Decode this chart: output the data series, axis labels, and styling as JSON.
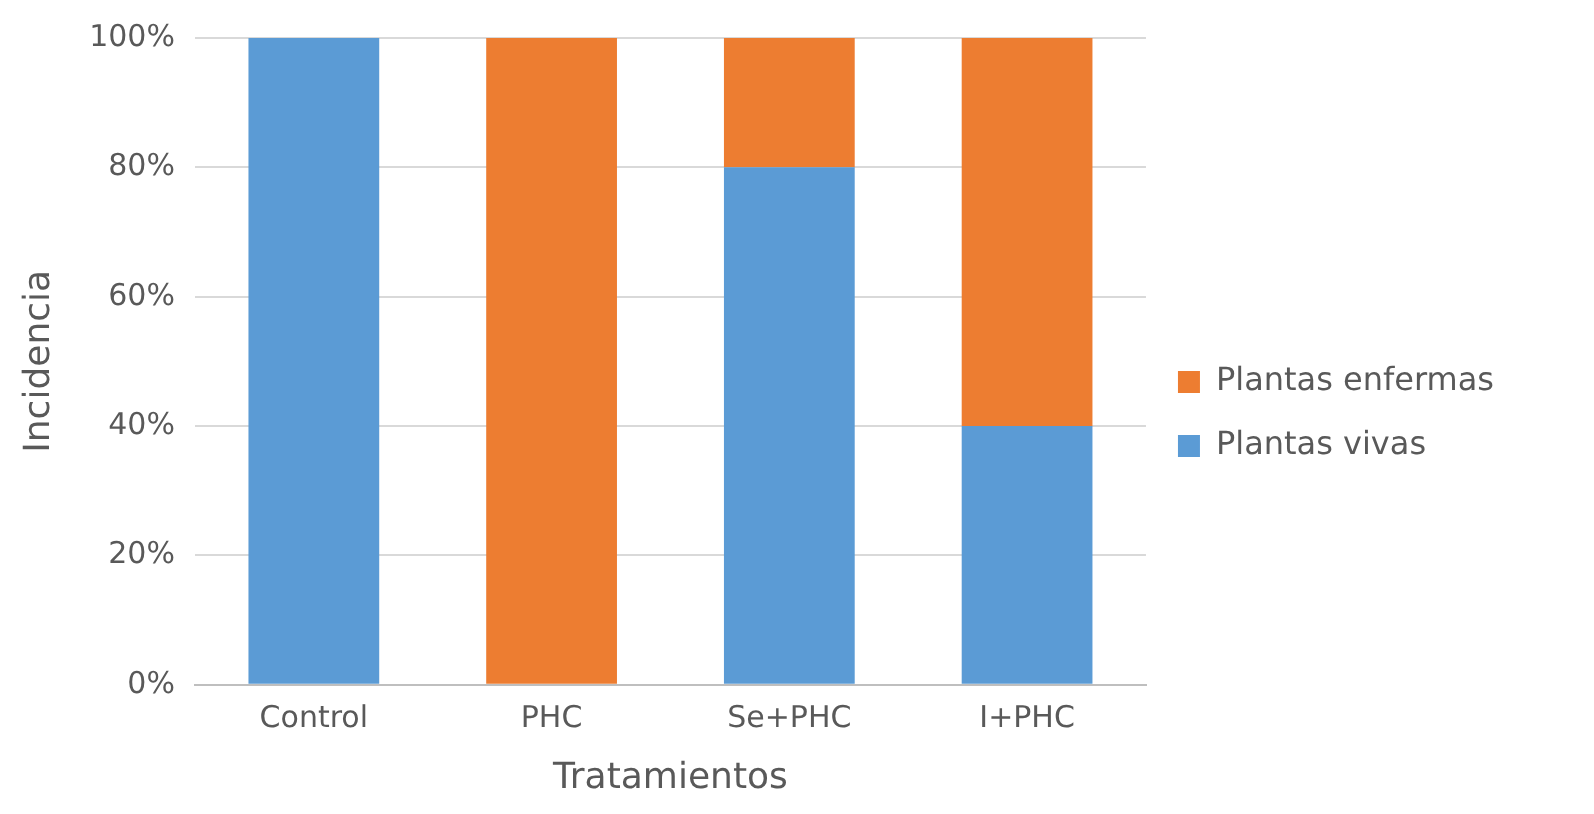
{
  "chart_data": {
    "type": "bar",
    "stacked": true,
    "xlabel": "Tratamientos",
    "ylabel": "Incidencia",
    "categories": [
      "Control",
      "PHC",
      "Se+PHC",
      "I+PHC"
    ],
    "series": [
      {
        "name": "Plantas vivas",
        "color": "#5b9bd5",
        "values": [
          100,
          0,
          80,
          40
        ]
      },
      {
        "name": "Plantas enfermas",
        "color": "#ed7d31",
        "values": [
          0,
          100,
          20,
          60
        ]
      }
    ],
    "ylim": [
      0,
      100
    ],
    "yticks": [
      {
        "value": 0,
        "label": "0%"
      },
      {
        "value": 20,
        "label": "20%"
      },
      {
        "value": 40,
        "label": "40%"
      },
      {
        "value": 60,
        "label": "60%"
      },
      {
        "value": 80,
        "label": "80%"
      },
      {
        "value": 100,
        "label": "100%"
      }
    ],
    "grid": "y",
    "legend": "right"
  }
}
